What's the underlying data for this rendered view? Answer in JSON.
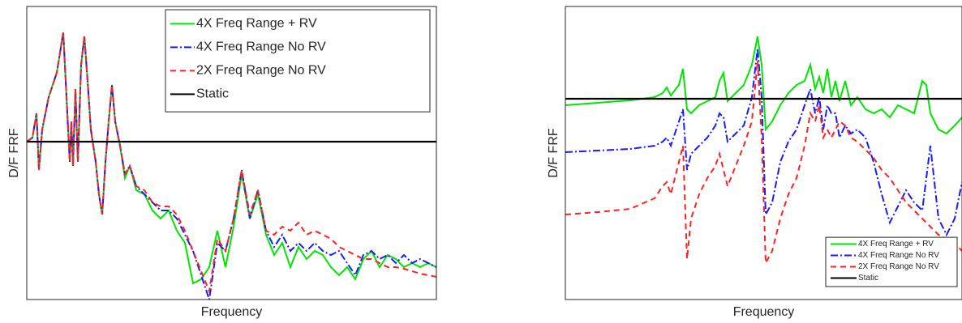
{
  "chart_data": [
    {
      "type": "line",
      "xlabel": "Frequency",
      "ylabel": "D/F FRF",
      "legend": "upper right",
      "xlim": [
        0,
        505
      ],
      "ylim": [
        0,
        362
      ],
      "x": [
        0,
        7,
        12,
        15,
        19,
        27,
        37,
        45,
        49,
        53,
        55,
        57,
        60,
        63,
        67,
        71,
        75,
        79,
        85,
        89,
        93,
        97,
        101,
        105,
        109,
        115,
        121,
        127,
        135,
        145,
        155,
        165,
        175,
        185,
        195,
        205,
        215,
        225,
        235,
        245,
        255,
        265,
        275,
        285,
        295,
        305,
        315,
        325,
        335,
        345,
        355,
        365,
        375,
        385,
        395,
        405,
        415,
        425,
        435,
        445,
        455,
        465,
        475,
        485,
        495,
        505
      ],
      "series": [
        {
          "name": "4X Freq Range + RV",
          "color": "#00e600",
          "linestyle": "-",
          "values": [
            195,
            200,
            230,
            160,
            210,
            250,
            280,
            330,
            250,
            170,
            220,
            165,
            260,
            170,
            290,
            325,
            270,
            210,
            170,
            130,
            105,
            170,
            220,
            265,
            220,
            190,
            150,
            165,
            135,
            130,
            110,
            100,
            110,
            85,
            70,
            20,
            25,
            40,
            85,
            40,
            90,
            155,
            100,
            130,
            80,
            55,
            70,
            40,
            65,
            50,
            60,
            55,
            40,
            30,
            40,
            25,
            50,
            60,
            40,
            55,
            50,
            40,
            45,
            40,
            45,
            40
          ]
        },
        {
          "name": "4X Freq Range No RV",
          "color": "#1a1aff",
          "linestyle": "-.",
          "values": [
            195,
            200,
            230,
            160,
            210,
            250,
            280,
            330,
            250,
            170,
            220,
            165,
            260,
            170,
            290,
            325,
            270,
            210,
            170,
            130,
            105,
            170,
            220,
            265,
            220,
            190,
            155,
            165,
            140,
            130,
            120,
            110,
            110,
            100,
            80,
            60,
            30,
            0,
            70,
            60,
            100,
            160,
            100,
            135,
            85,
            65,
            80,
            60,
            70,
            60,
            70,
            60,
            55,
            60,
            45,
            30,
            55,
            60,
            50,
            55,
            45,
            55,
            45,
            50,
            45,
            40
          ]
        },
        {
          "name": "2X Freq Range No RV",
          "color": "#ff2020",
          "linestyle": "--",
          "values": [
            195,
            200,
            230,
            160,
            210,
            250,
            280,
            330,
            250,
            170,
            220,
            165,
            260,
            170,
            290,
            325,
            270,
            210,
            170,
            130,
            105,
            170,
            220,
            265,
            220,
            190,
            155,
            165,
            140,
            135,
            120,
            115,
            115,
            105,
            85,
            60,
            35,
            10,
            75,
            60,
            100,
            160,
            105,
            135,
            85,
            80,
            90,
            85,
            95,
            80,
            85,
            80,
            75,
            65,
            60,
            55,
            50,
            50,
            45,
            40,
            40,
            38,
            35,
            32,
            30,
            28
          ]
        },
        {
          "name": "Static",
          "color": "#000000",
          "linestyle": "-",
          "x": [
            0,
            505
          ],
          "values": [
            195,
            195
          ]
        }
      ]
    },
    {
      "type": "line",
      "xlabel": "Frequency",
      "ylabel": "D/F FRF",
      "legend": "lower right",
      "xlim": [
        0,
        489
      ],
      "ylim": [
        0,
        362
      ],
      "x": [
        0,
        40,
        80,
        110,
        120,
        125,
        130,
        140,
        145,
        150,
        155,
        165,
        175,
        185,
        190,
        195,
        200,
        210,
        220,
        230,
        237,
        242,
        247,
        255,
        265,
        275,
        285,
        295,
        302,
        308,
        313,
        318,
        323,
        328,
        333,
        338,
        345,
        352,
        360,
        370,
        380,
        390,
        400,
        410,
        420,
        430,
        440,
        445,
        450,
        460,
        470,
        480,
        489
      ],
      "series": [
        {
          "name": "4X Freq Range + RV",
          "color": "#00e600",
          "linestyle": "-",
          "values": [
            240,
            243,
            246,
            250,
            255,
            262,
            252,
            265,
            285,
            235,
            230,
            240,
            245,
            250,
            270,
            280,
            245,
            255,
            265,
            290,
            325,
            290,
            210,
            220,
            240,
            255,
            265,
            270,
            290,
            260,
            275,
            255,
            285,
            250,
            270,
            245,
            270,
            240,
            250,
            235,
            230,
            235,
            225,
            240,
            235,
            230,
            270,
            265,
            230,
            210,
            205,
            215,
            225
          ]
        },
        {
          "name": "4X Freq Range No RV",
          "color": "#1a1aff",
          "linestyle": "-.",
          "values": [
            182,
            184,
            186,
            190,
            195,
            200,
            190,
            220,
            235,
            160,
            180,
            190,
            200,
            215,
            230,
            225,
            195,
            205,
            215,
            250,
            310,
            250,
            105,
            120,
            170,
            195,
            210,
            240,
            260,
            230,
            250,
            210,
            240,
            230,
            230,
            200,
            215,
            205,
            210,
            200,
            170,
            130,
            95,
            115,
            135,
            120,
            110,
            150,
            190,
            100,
            80,
            100,
            145
          ]
        },
        {
          "name": "2X Freq Range No RV",
          "color": "#ff2020",
          "linestyle": "--",
          "values": [
            105,
            108,
            112,
            125,
            140,
            145,
            130,
            170,
            190,
            50,
            100,
            130,
            150,
            165,
            180,
            160,
            140,
            165,
            190,
            220,
            295,
            200,
            45,
            60,
            100,
            130,
            150,
            190,
            230,
            220,
            240,
            200,
            210,
            200,
            210,
            220,
            215,
            200,
            195,
            185,
            175,
            160,
            150,
            135,
            120,
            110,
            100,
            95,
            90,
            80,
            75,
            70,
            60
          ]
        },
        {
          "name": "Static",
          "color": "#000000",
          "linestyle": "-",
          "x": [
            0,
            489
          ],
          "values": [
            248,
            248
          ]
        }
      ]
    }
  ]
}
